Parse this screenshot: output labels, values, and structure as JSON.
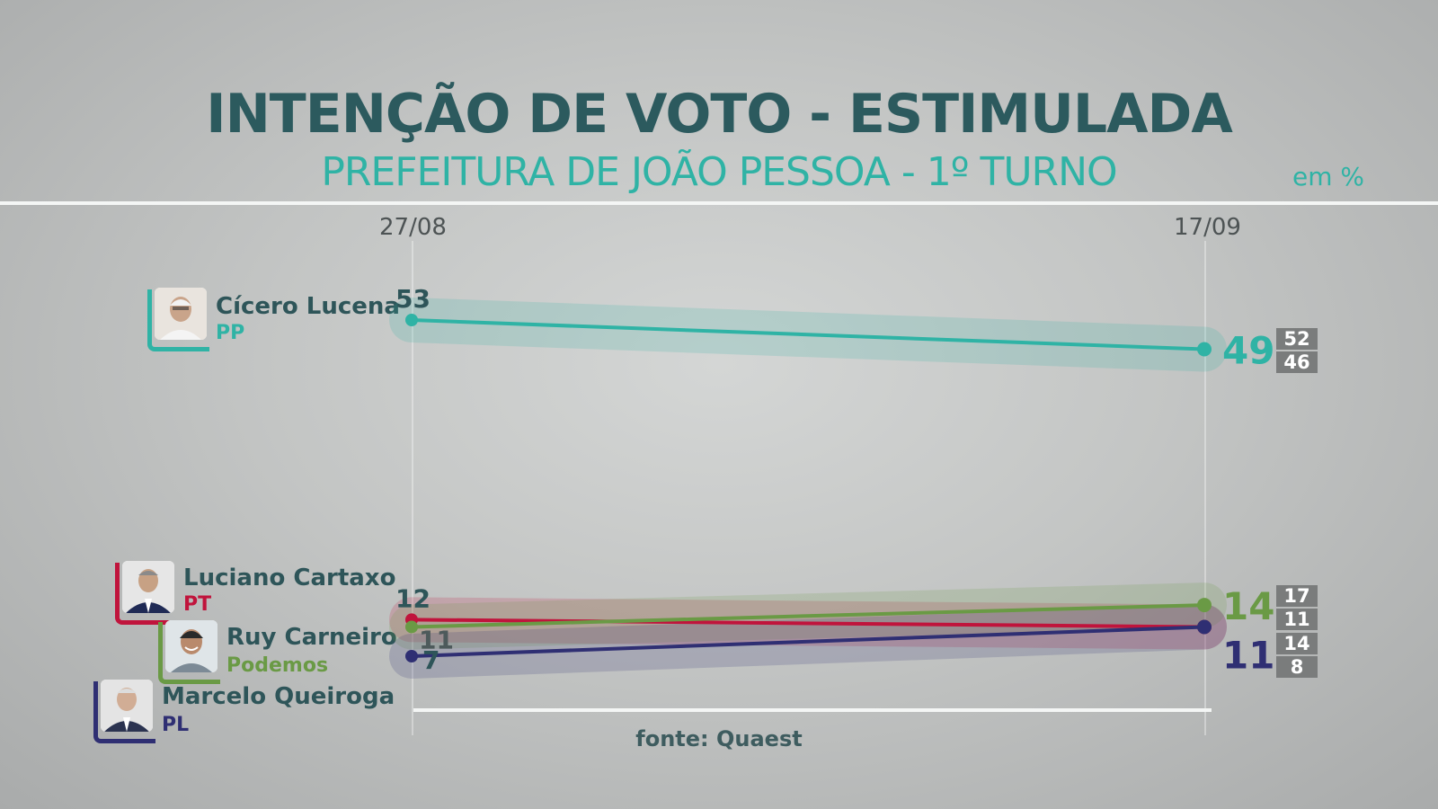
{
  "header": {
    "title": "INTENÇÃO  DE VOTO  - ESTIMULADA",
    "subtitle": "PREFEITURA DE JOÃO PESSOA - 1º TURNO",
    "unit": "em %"
  },
  "source": "fonte: Quaest",
  "candidates": [
    {
      "name": "Cícero Lucena",
      "party": "PP",
      "color": "#2fb3a5",
      "avatar_icon": "person-portrait-icon"
    },
    {
      "name": "Luciano Cartaxo",
      "party": "PT",
      "color": "#c0143c",
      "avatar_icon": "person-portrait-icon"
    },
    {
      "name": "Ruy Carneiro",
      "party": "Podemos",
      "color": "#6a9a45",
      "avatar_icon": "person-portrait-icon"
    },
    {
      "name": "Marcelo Queiroga",
      "party": "PL",
      "color": "#2f2f73",
      "avatar_icon": "person-portrait-icon"
    }
  ],
  "chart_data": {
    "type": "line",
    "x": [
      "27/08",
      "17/09"
    ],
    "ylim": [
      0,
      60
    ],
    "series": [
      {
        "name": "Cícero Lucena",
        "values": [
          53,
          49
        ],
        "color": "#2fb3a5",
        "margin_upper": 52,
        "margin_lower": 46
      },
      {
        "name": "Luciano Cartaxo",
        "values": [
          12,
          11
        ],
        "color": "#c0143c",
        "margin_upper": 14,
        "margin_lower": 8
      },
      {
        "name": "Ruy Carneiro",
        "values": [
          11,
          14
        ],
        "color": "#6a9a45",
        "margin_upper": 17,
        "margin_lower": 11
      },
      {
        "name": "Marcelo Queiroga",
        "values": [
          7,
          11
        ],
        "color": "#2f2f73",
        "margin_upper": 14,
        "margin_lower": 8
      }
    ],
    "labels": {
      "start": [
        "53",
        "12",
        "11",
        "7"
      ],
      "end_cicero": "49",
      "end_ruy": "14",
      "end_shared": "11",
      "margins_cicero": [
        "52",
        "46"
      ],
      "margins_ruy": [
        "17",
        "11"
      ],
      "margins_shared": [
        "14",
        "8"
      ]
    }
  }
}
